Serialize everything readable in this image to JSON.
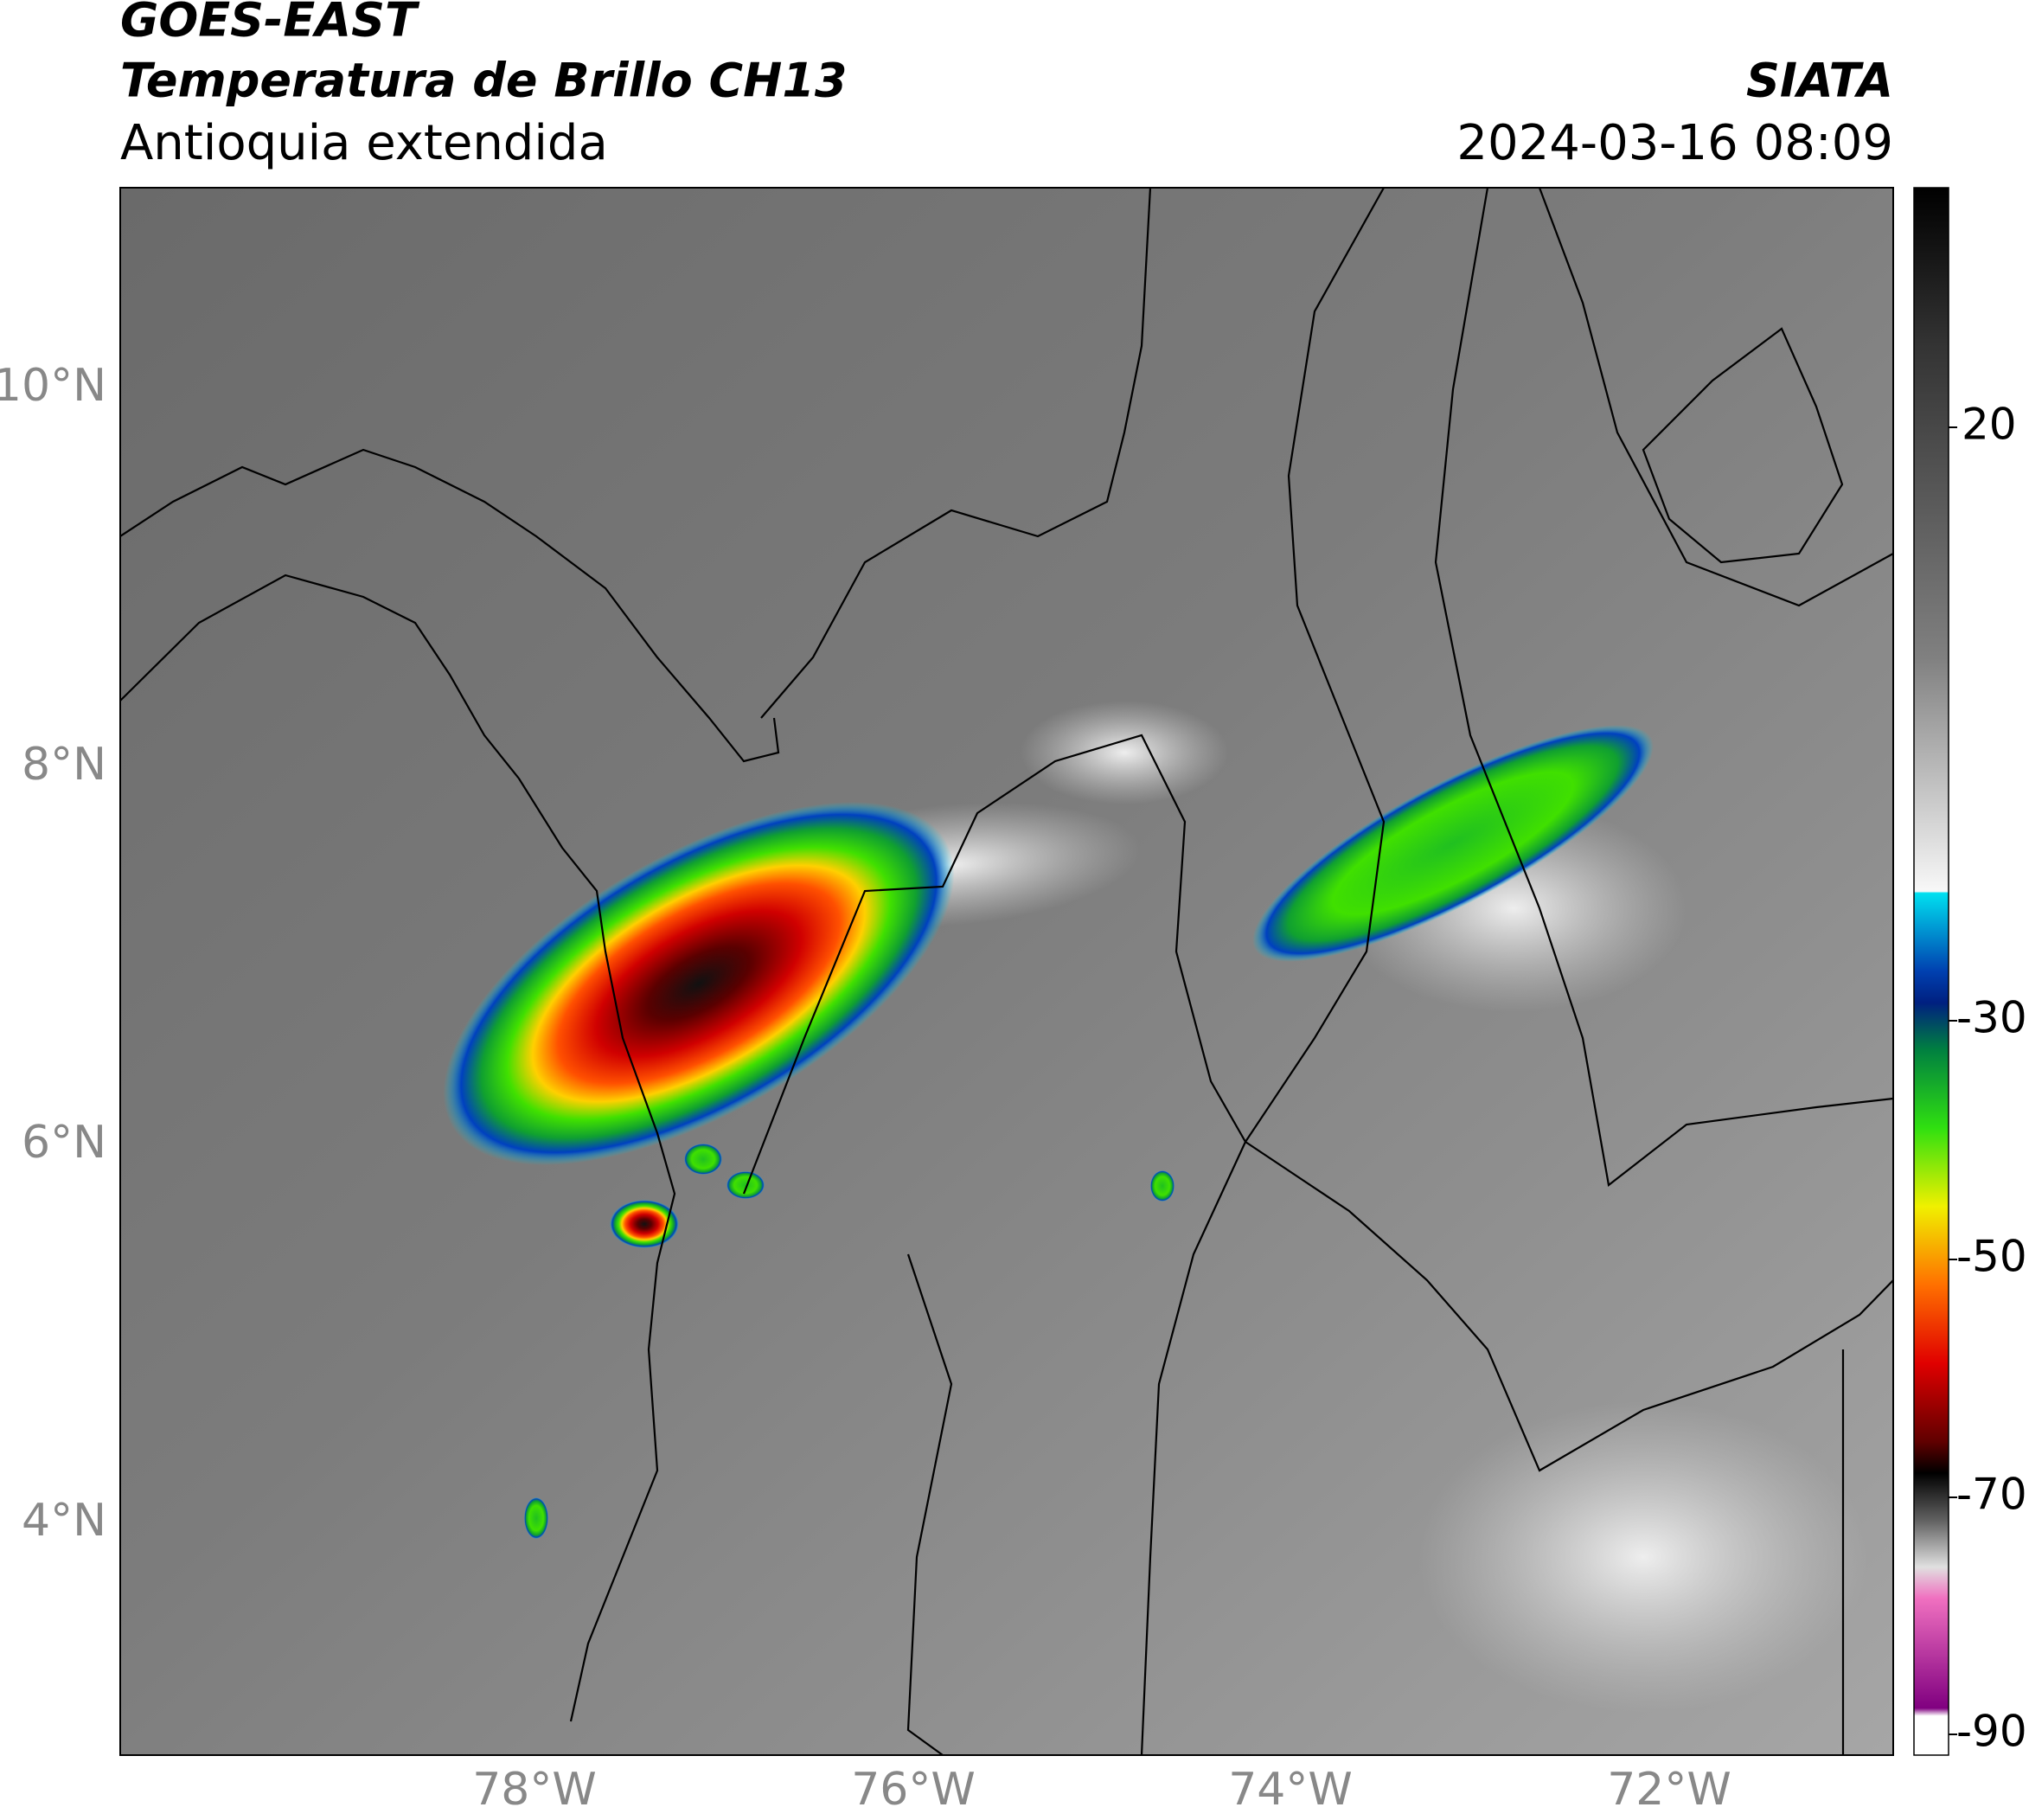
{
  "header": {
    "satellite": "GOES-EAST",
    "product": "Temperatura de Brillo CH13",
    "region": "Antioquia extendida",
    "source": "SIATA",
    "datetime": "2024-03-16 08:09"
  },
  "map": {
    "lat_labels": [
      "10°N",
      "8°N",
      "6°N",
      "4°N"
    ],
    "lon_labels": [
      "78°W",
      "76°W",
      "74°W",
      "72°W"
    ]
  },
  "colorbar": {
    "tick_labels": [
      "20",
      "-30",
      "-50",
      "-70",
      "-90"
    ]
  }
}
